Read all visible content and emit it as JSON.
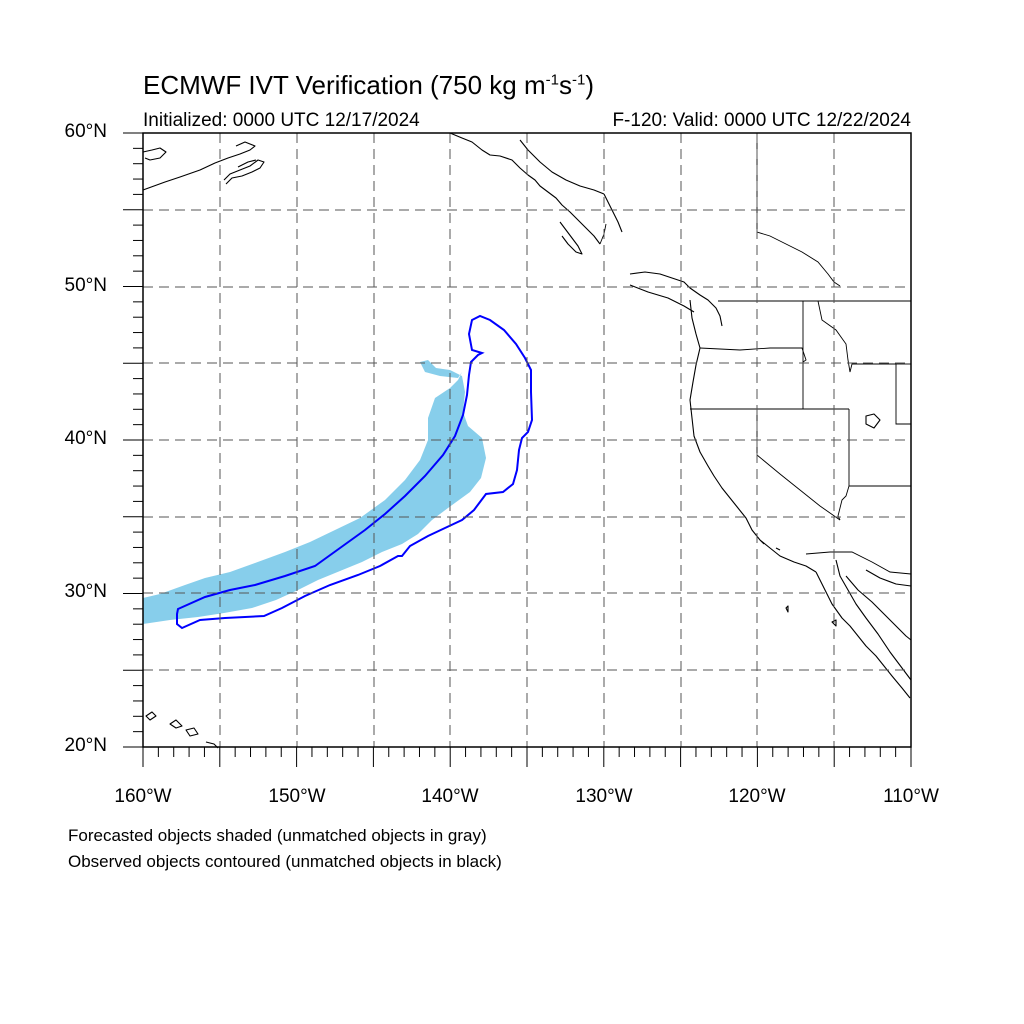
{
  "header": {
    "title_main": "ECMWF IVT Verification (750 kg m",
    "title_exp1": "-1",
    "title_mid": "s",
    "title_exp2": "-1",
    "title_end": ")",
    "initialized": "Initialized: 0000 UTC 12/17/2024",
    "valid": "F-120: Valid: 0000 UTC 12/22/2024"
  },
  "axes": {
    "lat_labels": [
      "60°N",
      "50°N",
      "40°N",
      "30°N",
      "20°N"
    ],
    "lon_labels": [
      "160°W",
      "150°W",
      "140°W",
      "130°W",
      "120°W",
      "110°W"
    ],
    "lon_range": [
      -160,
      -110
    ],
    "lat_range": [
      20,
      60
    ],
    "grid_spacing_deg": 5,
    "grid": true
  },
  "colors": {
    "forecast_fill": "#87ceeb",
    "observed_contour": "#0000ff",
    "coastline": "#000000",
    "grid": "#555555"
  },
  "legend": {
    "line1": "Forecasted objects shaded (unmatched objects in gray)",
    "line2": "Observed objects contoured (unmatched objects in black)"
  }
}
